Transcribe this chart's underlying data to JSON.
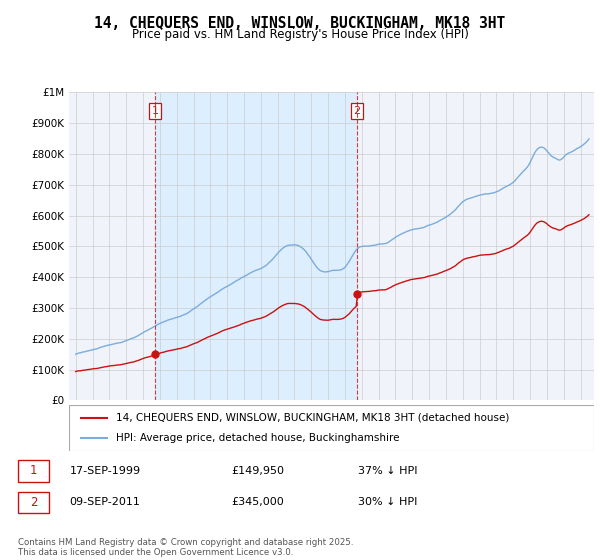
{
  "title": "14, CHEQUERS END, WINSLOW, BUCKINGHAM, MK18 3HT",
  "subtitle": "Price paid vs. HM Land Registry's House Price Index (HPI)",
  "ylim": [
    0,
    1000000
  ],
  "yticks": [
    0,
    100000,
    200000,
    300000,
    400000,
    500000,
    600000,
    700000,
    800000,
    900000,
    1000000
  ],
  "ytick_labels": [
    "£0",
    "£100K",
    "£200K",
    "£300K",
    "£400K",
    "£500K",
    "£600K",
    "£700K",
    "£800K",
    "£900K",
    "£1M"
  ],
  "hpi_color": "#7aacdc",
  "price_color": "#cc1111",
  "vline_color": "#cc1111",
  "shade_color": "#ddeeff",
  "background_color": "#f0f4fa",
  "grid_color": "#cccccc",
  "xlim_left": 1994.6,
  "xlim_right": 2025.8,
  "t1_x": 1999.71,
  "t1_y": 149950,
  "t2_x": 2011.71,
  "t2_y": 345000,
  "legend_house": "14, CHEQUERS END, WINSLOW, BUCKINGHAM, MK18 3HT (detached house)",
  "legend_hpi": "HPI: Average price, detached house, Buckinghamshire",
  "footnote": "Contains HM Land Registry data © Crown copyright and database right 2025.\nThis data is licensed under the Open Government Licence v3.0.",
  "table_row1": [
    "1",
    "17-SEP-1999",
    "£149,950",
    "37% ↓ HPI"
  ],
  "table_row2": [
    "2",
    "09-SEP-2011",
    "£345,000",
    "30% ↓ HPI"
  ]
}
